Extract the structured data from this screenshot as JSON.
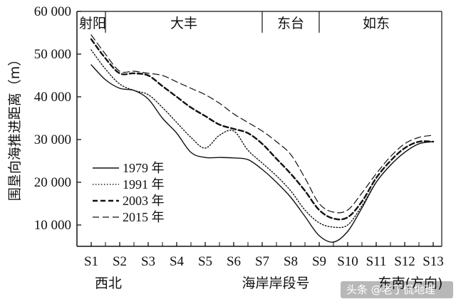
{
  "chart_data": {
    "type": "line",
    "ylabel": "围垦向海推进距离（m）",
    "xlabel": "海岸岸段号",
    "x_left_label": "西北",
    "x_right_label": "东南(方向)",
    "ylim": [
      0,
      60000
    ],
    "yticks": [
      "60 000",
      "50 000",
      "40 000",
      "30 000",
      "20 000",
      "10 000"
    ],
    "ytick_values": [
      60000,
      50000,
      40000,
      30000,
      20000,
      10000
    ],
    "categories": [
      "S1",
      "S2",
      "S3",
      "S4",
      "S5",
      "S6",
      "S7",
      "S8",
      "S9",
      "S10",
      "S11",
      "S12",
      "S13"
    ],
    "regions": [
      {
        "name": "射阳",
        "from": 0.6,
        "to": 1.5
      },
      {
        "name": "大丰",
        "from": 1.5,
        "to": 7.0
      },
      {
        "name": "东台",
        "from": 7.0,
        "to": 9.0
      },
      {
        "name": "如东",
        "from": 9.0,
        "to": 13.0
      }
    ],
    "series": [
      {
        "name": "1979 年",
        "style": "solid",
        "x": [
          1,
          1.5,
          2,
          2.5,
          3,
          3.5,
          4,
          4.5,
          5,
          5.5,
          6,
          6.5,
          7,
          7.5,
          8,
          8.5,
          9,
          9.5,
          10,
          10.5,
          11,
          11.5,
          12,
          12.5,
          13
        ],
        "y": [
          47500,
          44000,
          42000,
          41500,
          39500,
          35000,
          31500,
          27000,
          25800,
          25800,
          25700,
          25300,
          23000,
          20000,
          16500,
          12000,
          7500,
          6000,
          8500,
          14000,
          20000,
          24000,
          27000,
          29000,
          29500
        ]
      },
      {
        "name": "1991 年",
        "style": "dotted",
        "x": [
          1,
          1.5,
          2,
          2.5,
          3,
          3.5,
          4,
          4.5,
          5,
          5.5,
          6,
          6.5,
          7,
          7.5,
          8,
          8.5,
          9,
          9.5,
          10,
          10.5,
          11,
          11.5,
          12,
          12.5,
          13
        ],
        "y": [
          51000,
          46500,
          43000,
          41500,
          40500,
          37500,
          34000,
          30500,
          28000,
          31000,
          32000,
          27500,
          24500,
          21500,
          18000,
          13500,
          10500,
          9500,
          10000,
          14500,
          20000,
          24000,
          27000,
          29000,
          29500
        ]
      },
      {
        "name": "2003 年",
        "style": "dashed-heavy",
        "x": [
          1,
          1.5,
          2,
          2.5,
          3,
          3.5,
          4,
          4.5,
          5,
          5.5,
          6,
          6.5,
          7,
          7.5,
          8,
          8.5,
          9,
          9.5,
          10,
          10.5,
          11,
          11.5,
          12,
          12.5,
          13
        ],
        "y": [
          53500,
          49000,
          45500,
          45500,
          45000,
          42500,
          40000,
          37500,
          35500,
          33500,
          32500,
          31500,
          29000,
          25500,
          22000,
          18000,
          13500,
          11500,
          11800,
          15500,
          21000,
          25000,
          28000,
          29500,
          29500
        ]
      },
      {
        "name": "2015 年",
        "style": "dashed-light",
        "x": [
          1,
          1.5,
          2,
          2.5,
          3,
          3.5,
          4,
          4.5,
          5,
          5.5,
          6,
          6.5,
          7,
          7.5,
          8,
          8.5,
          9,
          9.5,
          10,
          10.5,
          11,
          11.5,
          12,
          12.5,
          13
        ],
        "y": [
          54500,
          50000,
          46000,
          46000,
          45500,
          45000,
          43500,
          42000,
          40500,
          38500,
          36000,
          34000,
          32000,
          29500,
          26500,
          21000,
          15000,
          13000,
          13500,
          17500,
          22000,
          26000,
          29000,
          30500,
          31000
        ]
      }
    ]
  },
  "watermark": "头条 @老丁侃地理"
}
